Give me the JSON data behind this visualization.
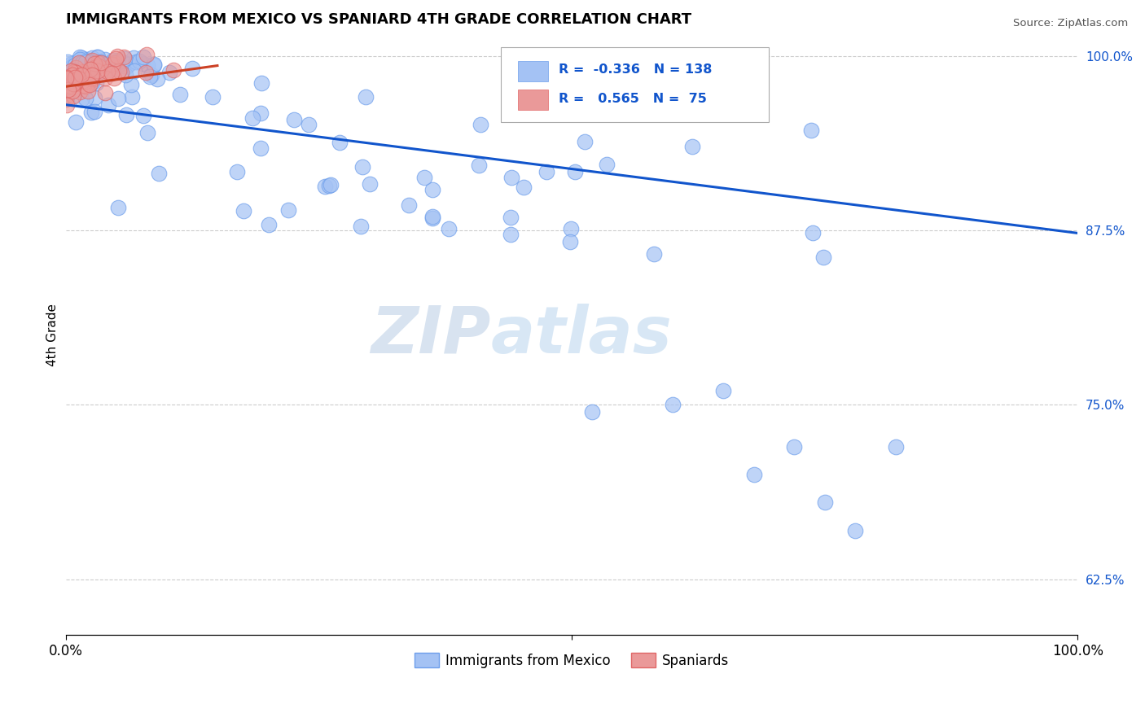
{
  "title": "IMMIGRANTS FROM MEXICO VS SPANIARD 4TH GRADE CORRELATION CHART",
  "source": "Source: ZipAtlas.com",
  "ylabel": "4th Grade",
  "right_yticks": [
    1.0,
    0.875,
    0.75,
    0.625
  ],
  "right_yticklabels": [
    "100.0%",
    "87.5%",
    "75.0%",
    "62.5%"
  ],
  "blue_R": -0.336,
  "blue_N": 138,
  "pink_R": 0.565,
  "pink_N": 75,
  "blue_color": "#a4c2f4",
  "blue_edge_color": "#6d9eeb",
  "blue_line_color": "#1155cc",
  "pink_color": "#ea9999",
  "pink_edge_color": "#e06666",
  "pink_line_color": "#cc4125",
  "legend_blue_label": "Immigrants from Mexico",
  "legend_pink_label": "Spaniards",
  "watermark_zip": "ZIP",
  "watermark_atlas": "atlas",
  "background_color": "#ffffff",
  "grid_color": "#cccccc",
  "ylim_low": 0.585,
  "ylim_high": 1.015,
  "xlim_low": 0.0,
  "xlim_high": 1.0,
  "blue_line_x0": 0.0,
  "blue_line_x1": 1.0,
  "blue_line_y0": 0.965,
  "blue_line_y1": 0.873,
  "pink_line_x0": 0.0,
  "pink_line_x1": 0.15,
  "pink_line_y0": 0.978,
  "pink_line_y1": 0.993
}
